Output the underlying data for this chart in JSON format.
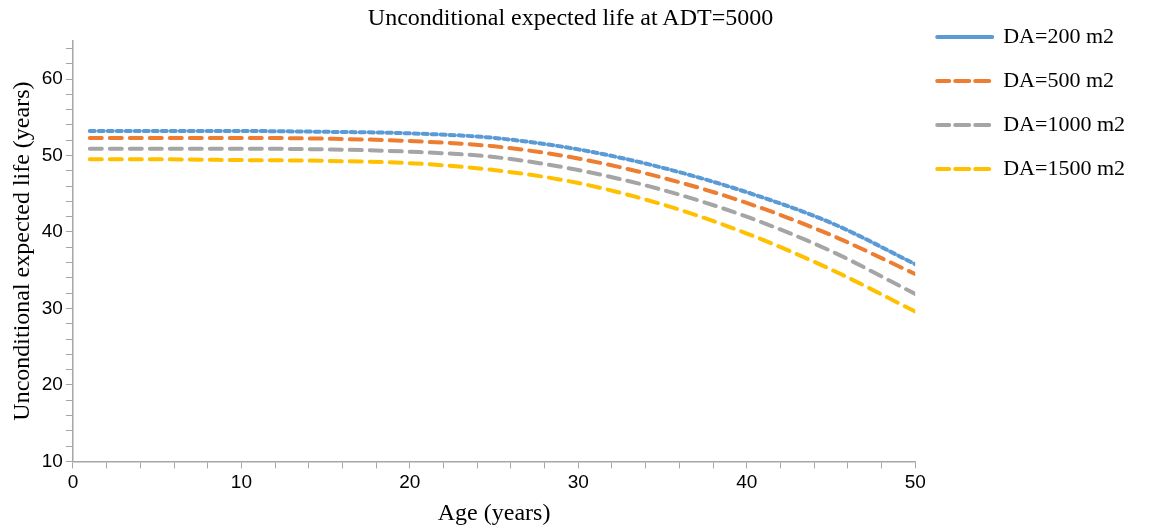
{
  "chart_data": {
    "type": "line",
    "title": "Unconditional expected life at ADT=5000",
    "xlabel": "Age (years)",
    "ylabel": "Unconditional expected life (years)",
    "x": [
      1,
      5,
      10,
      15,
      20,
      25,
      30,
      35,
      40,
      45,
      50
    ],
    "series": [
      {
        "name": "DA=200 m2",
        "color": "#5b9bd5",
        "line_style": "dotted",
        "values": [
          53.2,
          53.2,
          53.2,
          53.1,
          52.9,
          52.3,
          50.8,
          48.4,
          45.2,
          41.2,
          35.8
        ]
      },
      {
        "name": "DA=500 m2",
        "color": "#ed7d31",
        "line_style": "dashed",
        "values": [
          52.3,
          52.3,
          52.3,
          52.2,
          51.9,
          51.2,
          49.6,
          47.1,
          43.8,
          39.6,
          34.5
        ]
      },
      {
        "name": "DA=1000 m2",
        "color": "#a5a5a5",
        "line_style": "dashed",
        "values": [
          50.9,
          50.9,
          50.9,
          50.8,
          50.5,
          49.8,
          48.1,
          45.5,
          42.0,
          37.5,
          31.9
        ]
      },
      {
        "name": "DA=1500 m2",
        "color": "#ffc000",
        "line_style": "dashed",
        "values": [
          49.5,
          49.5,
          49.4,
          49.3,
          49.0,
          48.1,
          46.4,
          43.6,
          39.8,
          35.1,
          29.6
        ]
      }
    ],
    "xlim": [
      0,
      50
    ],
    "ylim": [
      10,
      65
    ],
    "xticks": [
      0,
      {
        "value": 2,
        "label": null
      },
      {
        "value": 4,
        "label": null
      },
      {
        "value": 6,
        "label": null
      },
      {
        "value": 8,
        "label": null
      },
      10,
      {
        "value": 12,
        "label": null
      },
      {
        "value": 14,
        "label": null
      },
      {
        "value": 16,
        "label": null
      },
      {
        "value": 18,
        "label": null
      },
      20,
      {
        "value": 22,
        "label": null
      },
      {
        "value": 24,
        "label": null
      },
      {
        "value": 26,
        "label": null
      },
      {
        "value": 28,
        "label": null
      },
      30,
      {
        "value": 32,
        "label": null
      },
      {
        "value": 34,
        "label": null
      },
      {
        "value": 36,
        "label": null
      },
      {
        "value": 38,
        "label": null
      },
      40,
      {
        "value": 42,
        "label": null
      },
      {
        "value": 44,
        "label": null
      },
      {
        "value": 46,
        "label": null
      },
      {
        "value": 48,
        "label": null
      },
      50
    ],
    "yticks": [
      10,
      {
        "value": 12,
        "label": null
      },
      {
        "value": 14,
        "label": null
      },
      {
        "value": 16,
        "label": null
      },
      {
        "value": 18,
        "label": null
      },
      20,
      {
        "value": 22,
        "label": null
      },
      {
        "value": 24,
        "label": null
      },
      {
        "value": 26,
        "label": null
      },
      {
        "value": 28,
        "label": null
      },
      30,
      {
        "value": 32,
        "label": null
      },
      {
        "value": 34,
        "label": null
      },
      {
        "value": 36,
        "label": null
      },
      {
        "value": 38,
        "label": null
      },
      40,
      {
        "value": 42,
        "label": null
      },
      {
        "value": 44,
        "label": null
      },
      {
        "value": 46,
        "label": null
      },
      {
        "value": 48,
        "label": null
      },
      50,
      {
        "value": 52,
        "label": null
      },
      {
        "value": 54,
        "label": null
      },
      {
        "value": 56,
        "label": null
      },
      {
        "value": 58,
        "label": null
      },
      60,
      {
        "value": 62,
        "label": null
      },
      {
        "value": 64,
        "label": null
      }
    ],
    "grid": false,
    "legend": "right",
    "marker": "none"
  }
}
